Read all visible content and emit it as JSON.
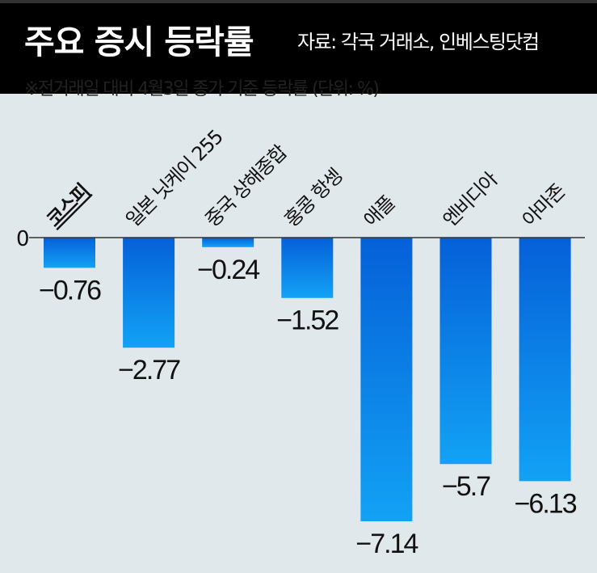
{
  "header": {
    "title": "주요 증시 등락률",
    "source": "자료: 각국 거래소, 인베스팅닷컴"
  },
  "note": "※전거래일 대비 4월3일 종가 기준 등락률 (단위: %)",
  "colors": {
    "bar_top": "#0560d8",
    "bar_bottom": "#12a2f5",
    "background": "#e0e8eb"
  },
  "chart_data": {
    "type": "bar",
    "title": "주요 증시 등락률",
    "categories": [
      "코스피",
      "일본 닛케이 255",
      "중국 상해종합",
      "홍콩 항셍",
      "애플",
      "엔비디아",
      "아마존"
    ],
    "values": [
      -0.76,
      -2.77,
      -0.24,
      -1.52,
      -7.14,
      -5.7,
      -6.13
    ],
    "value_labels": [
      "−0.76",
      "−2.77",
      "−0.24",
      "−1.52",
      "−7.14",
      "−5.7",
      "−6.13"
    ],
    "zero_label": "0",
    "ylim": [
      -7.14,
      0
    ],
    "unit": "%"
  }
}
